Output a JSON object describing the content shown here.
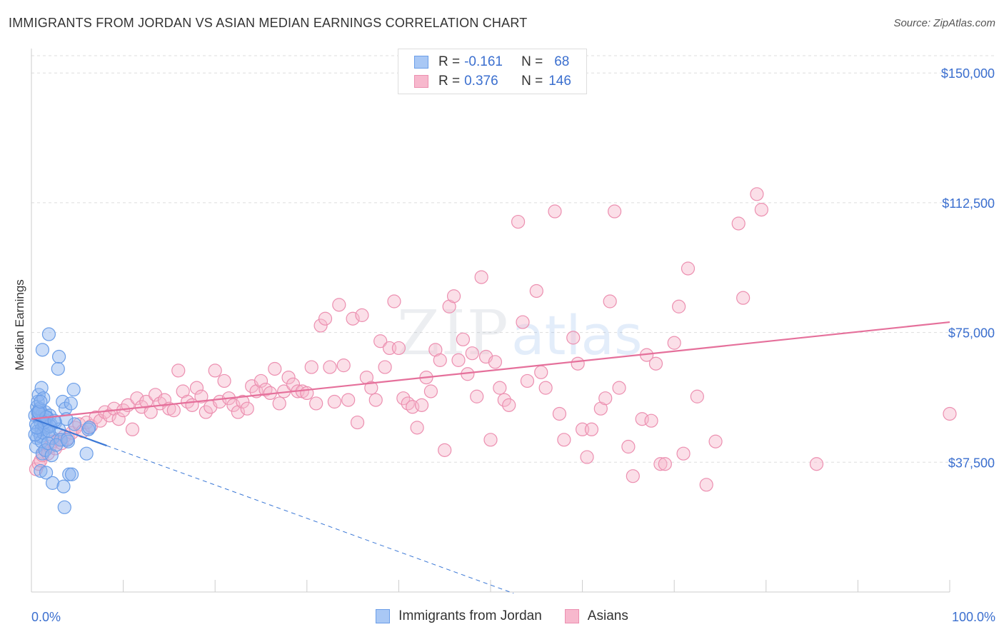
{
  "title": "IMMIGRANTS FROM JORDAN VS ASIAN MEDIAN EARNINGS CORRELATION CHART",
  "source": "Source: ZipAtlas.com",
  "watermark": {
    "zip": "ZIP",
    "atlas": "atlas"
  },
  "legend": {
    "rows": [
      {
        "r_label": "R =",
        "r_value": "-0.161",
        "n_label": "N =",
        "n_value": "68",
        "color": "#a9c8f5",
        "border": "#6b9ee8"
      },
      {
        "r_label": "R =",
        "r_value": "0.376",
        "n_label": "N =",
        "n_value": "146",
        "color": "#f7b8cd",
        "border": "#ec8fb0"
      }
    ]
  },
  "bottom_legend": [
    {
      "label": "Immigrants from Jordan",
      "color": "#a9c8f5",
      "border": "#6b9ee8"
    },
    {
      "label": "Asians",
      "color": "#f7b8cd",
      "border": "#ec8fb0"
    }
  ],
  "chart_data": {
    "type": "scatter",
    "title": "IMMIGRANTS FROM JORDAN VS ASIAN MEDIAN EARNINGS CORRELATION CHART",
    "xlabel": "",
    "ylabel": "Median Earnings",
    "xlim": [
      0,
      100
    ],
    "ylim": [
      0,
      155000
    ],
    "x_tick_labels": [
      "0.0%",
      "100.0%"
    ],
    "y_ticks": [
      37500,
      75000,
      112500,
      150000
    ],
    "y_tick_labels": [
      "$37,500",
      "$75,000",
      "$112,500",
      "$150,000"
    ],
    "series": [
      {
        "name": "Immigrants from Jordan",
        "color": "#6b9ee8",
        "fill": "rgba(140,180,240,0.45)",
        "points": [
          [
            0.4,
            51000
          ],
          [
            0.5,
            48500
          ],
          [
            0.6,
            53500
          ],
          [
            0.7,
            46500
          ],
          [
            0.8,
            50500
          ],
          [
            0.9,
            52500
          ],
          [
            0.6,
            44500
          ],
          [
            0.7,
            55000
          ],
          [
            1.0,
            49000
          ],
          [
            1.1,
            47000
          ],
          [
            1.2,
            51500
          ],
          [
            0.5,
            42000
          ],
          [
            1.3,
            50000
          ],
          [
            1.4,
            48000
          ],
          [
            0.8,
            57000
          ],
          [
            1.0,
            45000
          ],
          [
            1.5,
            52000
          ],
          [
            1.6,
            49500
          ],
          [
            1.8,
            47500
          ],
          [
            2.0,
            51000
          ],
          [
            0.9,
            53000
          ],
          [
            1.1,
            43500
          ],
          [
            1.3,
            46000
          ],
          [
            1.7,
            50500
          ],
          [
            2.1,
            48500
          ],
          [
            2.3,
            44500
          ],
          [
            2.6,
            49000
          ],
          [
            3.0,
            47000
          ],
          [
            0.4,
            45500
          ],
          [
            0.7,
            52000
          ],
          [
            1.2,
            40000
          ],
          [
            1.5,
            41000
          ],
          [
            1.8,
            43000
          ],
          [
            2.2,
            39500
          ],
          [
            1.0,
            35000
          ],
          [
            1.6,
            34500
          ],
          [
            2.3,
            31500
          ],
          [
            3.5,
            30500
          ],
          [
            4.1,
            34000
          ],
          [
            3.6,
            24500
          ],
          [
            1.2,
            70000
          ],
          [
            1.9,
            74500
          ],
          [
            3.0,
            68000
          ],
          [
            2.9,
            64500
          ],
          [
            1.1,
            59000
          ],
          [
            4.6,
            58500
          ],
          [
            3.4,
            55000
          ],
          [
            1.3,
            56000
          ],
          [
            3.7,
            53000
          ],
          [
            4.3,
            54500
          ],
          [
            2.0,
            48000
          ],
          [
            1.6,
            50500
          ],
          [
            3.2,
            44000
          ],
          [
            4.0,
            43500
          ],
          [
            4.7,
            48500
          ],
          [
            3.8,
            50000
          ],
          [
            6.2,
            47000
          ],
          [
            1.4,
            49000
          ],
          [
            0.8,
            52000
          ],
          [
            1.9,
            46500
          ],
          [
            2.7,
            42500
          ],
          [
            4.4,
            34000
          ],
          [
            3.9,
            44000
          ],
          [
            2.5,
            49500
          ],
          [
            1.0,
            55000
          ],
          [
            0.6,
            47500
          ],
          [
            6.3,
            47500
          ],
          [
            6.0,
            40000
          ]
        ]
      },
      {
        "name": "Asians",
        "color": "#ec8fb0",
        "fill": "rgba(247,184,205,0.45)",
        "points": [
          [
            0.5,
            35500
          ],
          [
            0.8,
            37000
          ],
          [
            1.0,
            38000
          ],
          [
            1.2,
            39500
          ],
          [
            1.5,
            41000
          ],
          [
            1.8,
            40000
          ],
          [
            2.0,
            42000
          ],
          [
            2.3,
            43500
          ],
          [
            2.6,
            41500
          ],
          [
            3.0,
            44000
          ],
          [
            3.3,
            43000
          ],
          [
            3.6,
            45000
          ],
          [
            4.0,
            44500
          ],
          [
            4.4,
            46000
          ],
          [
            4.8,
            47500
          ],
          [
            5.2,
            48500
          ],
          [
            5.6,
            46500
          ],
          [
            6.0,
            49000
          ],
          [
            6.5,
            48000
          ],
          [
            7.0,
            50500
          ],
          [
            7.5,
            49500
          ],
          [
            8.0,
            52000
          ],
          [
            8.5,
            51000
          ],
          [
            9.0,
            53000
          ],
          [
            9.5,
            50000
          ],
          [
            10.0,
            52500
          ],
          [
            10.5,
            54000
          ],
          [
            11.0,
            47000
          ],
          [
            11.5,
            56000
          ],
          [
            12.0,
            53500
          ],
          [
            12.5,
            55000
          ],
          [
            13.0,
            52000
          ],
          [
            13.5,
            57000
          ],
          [
            14.0,
            54500
          ],
          [
            14.5,
            55500
          ],
          [
            15.0,
            53000
          ],
          [
            15.5,
            52500
          ],
          [
            16.0,
            64000
          ],
          [
            16.5,
            58000
          ],
          [
            17.0,
            55000
          ],
          [
            17.5,
            54000
          ],
          [
            18.0,
            59000
          ],
          [
            18.5,
            56500
          ],
          [
            19.0,
            52000
          ],
          [
            19.5,
            53500
          ],
          [
            20.0,
            64000
          ],
          [
            20.5,
            55000
          ],
          [
            21.0,
            61000
          ],
          [
            21.5,
            56000
          ],
          [
            22.0,
            54000
          ],
          [
            22.5,
            52000
          ],
          [
            23.0,
            55000
          ],
          [
            23.5,
            53000
          ],
          [
            24.0,
            59500
          ],
          [
            24.5,
            58000
          ],
          [
            25.0,
            61000
          ],
          [
            25.5,
            58500
          ],
          [
            26.0,
            57500
          ],
          [
            26.5,
            64500
          ],
          [
            27.0,
            54500
          ],
          [
            27.5,
            58000
          ],
          [
            28.0,
            62000
          ],
          [
            28.5,
            60000
          ],
          [
            29.0,
            58000
          ],
          [
            29.5,
            58000
          ],
          [
            30.0,
            57500
          ],
          [
            30.5,
            65000
          ],
          [
            31.0,
            54500
          ],
          [
            31.5,
            77000
          ],
          [
            32.0,
            79000
          ],
          [
            32.5,
            65000
          ],
          [
            33.0,
            55000
          ],
          [
            33.5,
            83000
          ],
          [
            34.0,
            65500
          ],
          [
            34.5,
            55500
          ],
          [
            35.0,
            79000
          ],
          [
            35.5,
            49000
          ],
          [
            36.0,
            80000
          ],
          [
            36.5,
            62000
          ],
          [
            37.0,
            59000
          ],
          [
            37.5,
            55500
          ],
          [
            38.0,
            72500
          ],
          [
            38.5,
            65000
          ],
          [
            39.0,
            70500
          ],
          [
            39.5,
            84000
          ],
          [
            40.0,
            70500
          ],
          [
            40.5,
            56000
          ],
          [
            41.0,
            54500
          ],
          [
            41.5,
            53500
          ],
          [
            42.0,
            47500
          ],
          [
            42.5,
            54000
          ],
          [
            43.0,
            62000
          ],
          [
            43.5,
            58000
          ],
          [
            44.0,
            70000
          ],
          [
            44.5,
            67000
          ],
          [
            45.0,
            41000
          ],
          [
            45.5,
            82500
          ],
          [
            46.0,
            85500
          ],
          [
            46.5,
            67000
          ],
          [
            47.0,
            73000
          ],
          [
            47.5,
            63000
          ],
          [
            48.0,
            69000
          ],
          [
            48.5,
            56500
          ],
          [
            49.0,
            91000
          ],
          [
            49.5,
            68000
          ],
          [
            50.0,
            44000
          ],
          [
            50.5,
            66500
          ],
          [
            51.0,
            59000
          ],
          [
            51.5,
            55500
          ],
          [
            52.0,
            54000
          ],
          [
            53.0,
            107000
          ],
          [
            53.5,
            78000
          ],
          [
            54.0,
            61000
          ],
          [
            55.0,
            87000
          ],
          [
            55.5,
            63500
          ],
          [
            56.0,
            59000
          ],
          [
            57.0,
            110000
          ],
          [
            57.5,
            51500
          ],
          [
            58.0,
            44000
          ],
          [
            59.0,
            73500
          ],
          [
            59.5,
            66000
          ],
          [
            60.0,
            47000
          ],
          [
            60.5,
            39000
          ],
          [
            61.0,
            47000
          ],
          [
            62.0,
            53000
          ],
          [
            62.5,
            56000
          ],
          [
            63.0,
            84000
          ],
          [
            63.5,
            110000
          ],
          [
            64.0,
            59000
          ],
          [
            65.0,
            42000
          ],
          [
            65.5,
            33500
          ],
          [
            66.5,
            50000
          ],
          [
            67.0,
            68500
          ],
          [
            67.5,
            49500
          ],
          [
            68.0,
            66000
          ],
          [
            68.5,
            37000
          ],
          [
            69.0,
            37000
          ],
          [
            70.0,
            72000
          ],
          [
            70.5,
            82500
          ],
          [
            71.0,
            40000
          ],
          [
            71.5,
            93500
          ],
          [
            72.5,
            56500
          ],
          [
            73.5,
            31000
          ],
          [
            74.5,
            43500
          ],
          [
            77.0,
            106500
          ],
          [
            77.5,
            85000
          ],
          [
            79.0,
            115000
          ],
          [
            79.5,
            110500
          ],
          [
            85.5,
            37000
          ],
          [
            100.0,
            51500
          ]
        ]
      }
    ],
    "trend_lines": [
      {
        "series": "Immigrants from Jordan",
        "x": [
          0,
          8.2
        ],
        "y": [
          50200,
          42300
        ],
        "dashed_extension_to_x": 52.5
      },
      {
        "series": "Asians",
        "x": [
          0,
          100
        ],
        "y": [
          50000,
          78000
        ]
      }
    ]
  }
}
